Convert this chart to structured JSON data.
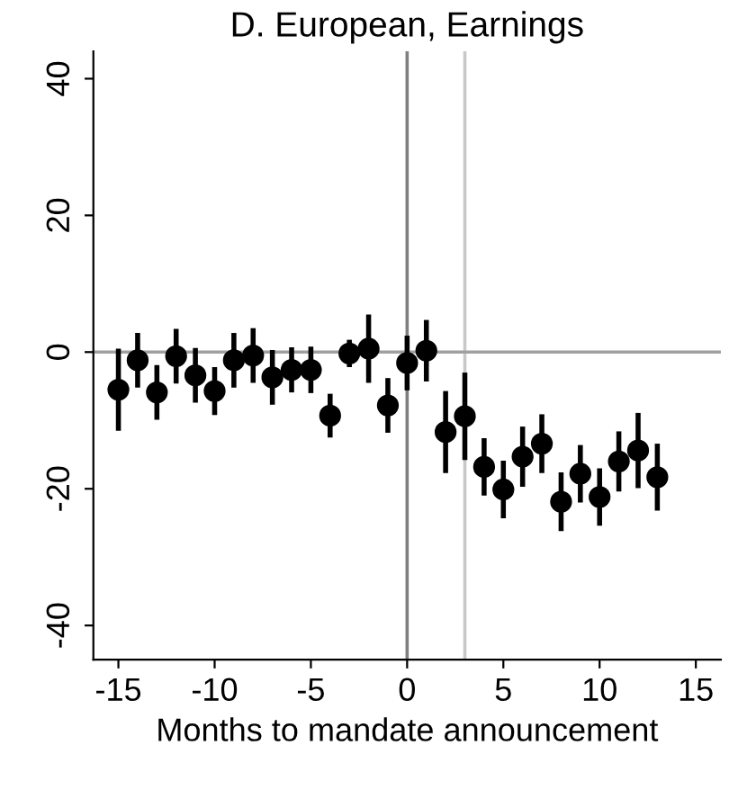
{
  "chart_data": {
    "type": "scatter",
    "title": "D. European, Earnings",
    "xlabel": "Months to mandate announcement",
    "x": [
      -15,
      -14,
      -13,
      -12,
      -11,
      -10,
      -9,
      -8,
      -7,
      -6,
      -5,
      -4,
      -3,
      -2,
      -1,
      0,
      1,
      2,
      3,
      4,
      5,
      6,
      7,
      8,
      9,
      10,
      11,
      12,
      13
    ],
    "values": [
      -5.5,
      -1.2,
      -5.9,
      -0.6,
      -3.4,
      -5.7,
      -1.2,
      -0.5,
      -3.7,
      -2.6,
      -2.6,
      -9.3,
      -0.2,
      0.5,
      -7.8,
      -1.6,
      0.2,
      -11.7,
      -9.4,
      -16.8,
      -20.1,
      -15.3,
      -13.4,
      -21.9,
      -17.8,
      -21.2,
      -16.0,
      -14.4,
      -18.3
    ],
    "errors": [
      6,
      4,
      4,
      4,
      4,
      3.5,
      4,
      4,
      4,
      3.3,
      3.4,
      3.2,
      2,
      5,
      4,
      4,
      4.5,
      6,
      6.4,
      4.2,
      4.2,
      4.4,
      4.3,
      4.3,
      4.2,
      4.2,
      4.4,
      5.5,
      4.9
    ],
    "color": "#000000",
    "marker": "circle",
    "xlim": [
      -16.3,
      16.3
    ],
    "ylim": [
      -45,
      44
    ],
    "xticks": [
      -15,
      -10,
      -5,
      0,
      5,
      10,
      15
    ],
    "yticks": [
      -40,
      -20,
      0,
      20,
      40
    ],
    "ref_lines": [
      {
        "axis": "x",
        "value": 0,
        "color": "#808080"
      },
      {
        "axis": "x",
        "value": 3,
        "color": "#c8c8c8"
      },
      {
        "axis": "y",
        "value": 0,
        "color": "#a0a0a0"
      }
    ],
    "grid": false,
    "legend": false
  }
}
